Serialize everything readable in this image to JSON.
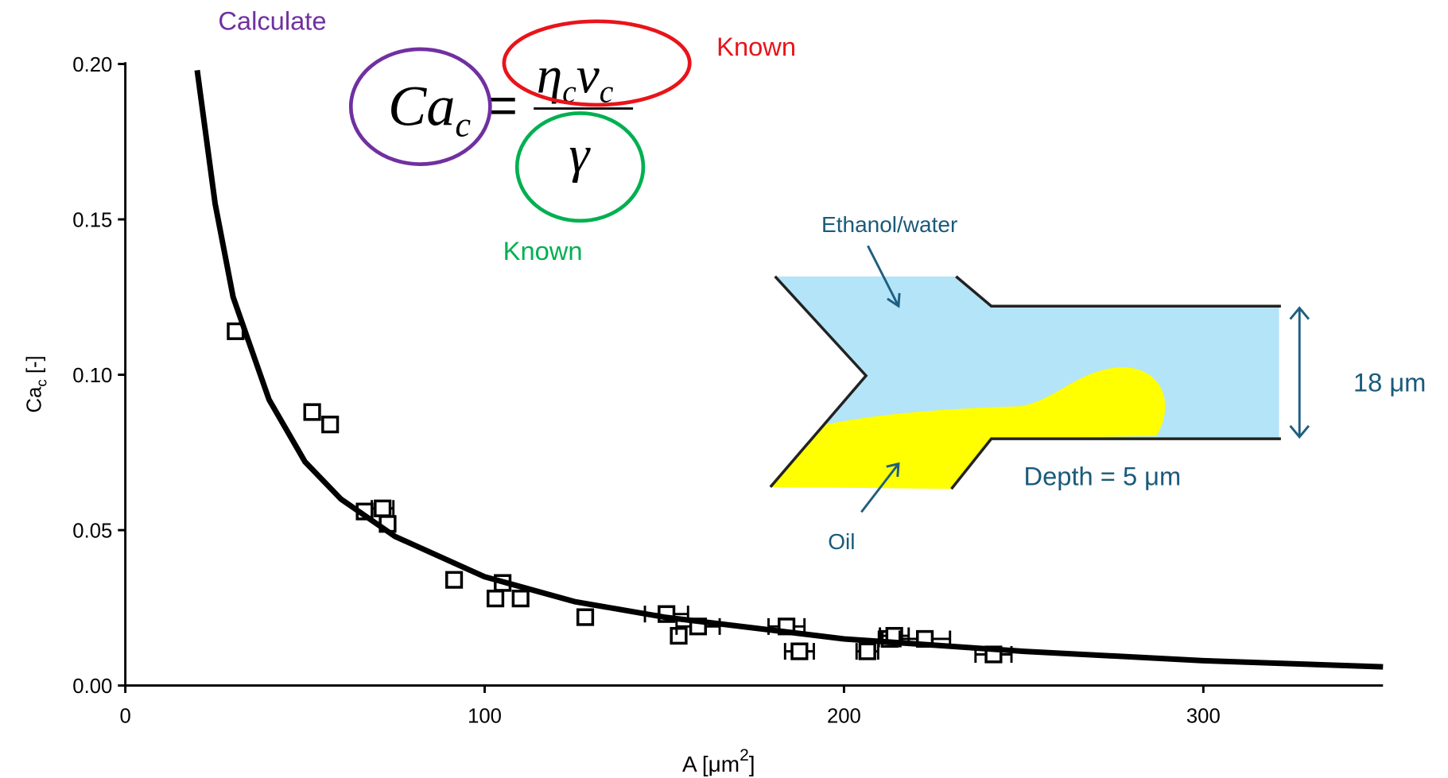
{
  "chart_data": {
    "type": "scatter",
    "x_label": {
      "text": "A  [μm",
      "sup": "2",
      "suffix": "]"
    },
    "y_label": {
      "text": "Ca",
      "sub": "c",
      "suffix": " [-]"
    },
    "xlim": [
      0,
      350
    ],
    "ylim": [
      0,
      0.2
    ],
    "xticks": [
      0,
      100,
      200,
      300
    ],
    "yticks": [
      {
        "value": 0,
        "label": "0.00"
      },
      0.05,
      {
        "value": 0.1,
        "label": "0.10"
      },
      0.15,
      {
        "value": 0.2,
        "label": "0.20"
      }
    ],
    "series": [
      {
        "color": "#000000",
        "x": [
          30.7,
          52,
          57,
          66.6,
          71.6,
          73,
          91.5,
          103,
          105,
          110,
          128,
          150.6,
          154,
          159.4,
          184,
          187.6,
          206.5,
          212.7,
          214,
          222.5,
          241.6
        ],
        "values": [
          0.114,
          0.088,
          0.084,
          0.056,
          0.057,
          0.052,
          0.034,
          0.028,
          0.033,
          0.028,
          0.022,
          0.023,
          0.016,
          0.019,
          0.019,
          0.011,
          0.011,
          0.015,
          0.016,
          0.015,
          0.01
        ],
        "xerr": [
          1.5,
          1.5,
          1.5,
          2,
          3,
          2,
          2,
          2,
          2,
          2,
          2,
          6,
          2,
          6,
          5,
          4,
          3,
          3,
          4,
          7,
          5
        ]
      },
      {
        "color": "#000000",
        "x": [
          20,
          25,
          30,
          40,
          50,
          60,
          75,
          100,
          125,
          150,
          200,
          250,
          300,
          350
        ],
        "values": [
          0.198,
          0.155,
          0.125,
          0.092,
          0.072,
          0.06,
          0.048,
          0.035,
          0.027,
          0.022,
          0.015,
          0.011,
          0.008,
          0.006
        ]
      }
    ]
  },
  "equation": {
    "lhs": "Ca",
    "lhs_sub": "c",
    "equals": "=",
    "num1": "η",
    "num1_sub": "c",
    "num2": "v",
    "num2_sub": "c",
    "den": "γ"
  },
  "annotations": {
    "calculate": "Calculate",
    "known_top": "Known",
    "known_bottom": "Known"
  },
  "diagram": {
    "continuous": "Ethanol/water",
    "dispersed": "Oil",
    "width": "18 μm",
    "depth": "Depth = 5 μm"
  }
}
